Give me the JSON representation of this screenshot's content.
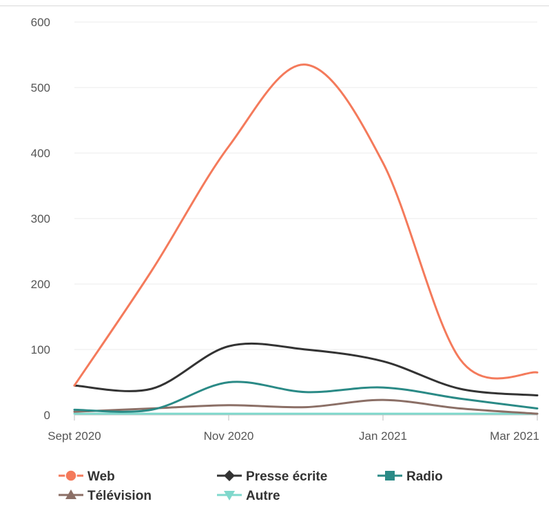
{
  "chart_data": {
    "type": "line",
    "title": "",
    "xlabel": "",
    "ylabel": "",
    "ylim": [
      0,
      600
    ],
    "y_ticks": [
      "0",
      "100",
      "200",
      "300",
      "400",
      "500",
      "600"
    ],
    "x_ticks": [
      "Sept 2020",
      "Nov 2020",
      "Jan 2021",
      "Mar 2021"
    ],
    "x": [
      "Sept 2020",
      "Oct 2020",
      "Nov 2020",
      "Dec 2020",
      "Jan 2021",
      "Feb 2021",
      "Mar 2021"
    ],
    "grid": true,
    "legend_position": "bottom",
    "series": [
      {
        "name": "Web",
        "color": "#f47a5b",
        "marker": "circle",
        "values": [
          45,
          220,
          410,
          535,
          385,
          85,
          65
        ]
      },
      {
        "name": "Presse écrite",
        "color": "#333333",
        "marker": "diamond",
        "values": [
          45,
          40,
          105,
          100,
          82,
          40,
          30
        ]
      },
      {
        "name": "Radio",
        "color": "#2a8a86",
        "marker": "square",
        "values": [
          8,
          8,
          50,
          35,
          42,
          25,
          10
        ]
      },
      {
        "name": "Télévision",
        "color": "#8b6f66",
        "marker": "triangle-up",
        "values": [
          5,
          10,
          15,
          12,
          23,
          10,
          2
        ]
      },
      {
        "name": "Autre",
        "color": "#7fd8cc",
        "marker": "triangle-down",
        "values": [
          2,
          2,
          2,
          2,
          2,
          2,
          2
        ]
      }
    ]
  }
}
